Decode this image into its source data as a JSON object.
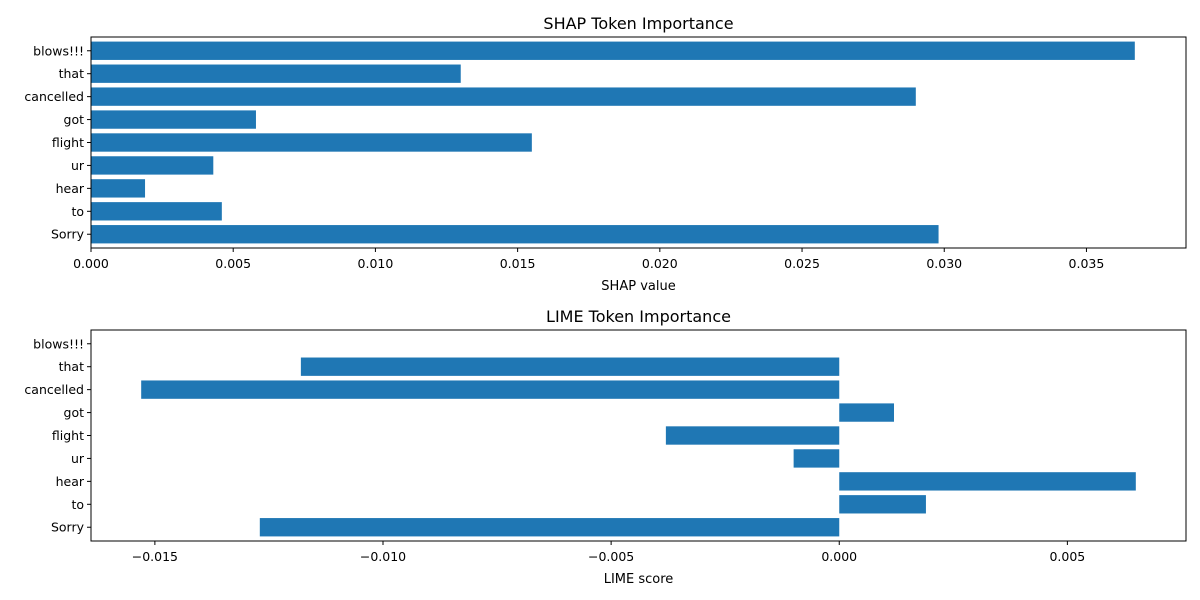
{
  "chart_data": [
    {
      "type": "bar",
      "orientation": "horizontal",
      "title": "SHAP Token Importance",
      "xlabel": "SHAP value",
      "ylabel": "",
      "categories": [
        "Sorry",
        "to",
        "hear",
        "ur",
        "flight",
        "got",
        "cancelled",
        "that",
        "blows!!!"
      ],
      "values": [
        0.0298,
        0.0046,
        0.0019,
        0.0043,
        0.0155,
        0.0058,
        0.029,
        0.013,
        0.0367
      ],
      "xlim": [
        0,
        0.0385
      ],
      "xticks": [
        0.0,
        0.005,
        0.01,
        0.015,
        0.02,
        0.025,
        0.03,
        0.035
      ],
      "xtick_labels": [
        "0.000",
        "0.005",
        "0.010",
        "0.015",
        "0.020",
        "0.025",
        "0.030",
        "0.035"
      ],
      "grid": false,
      "bar_color": "#1f77b4"
    },
    {
      "type": "bar",
      "orientation": "horizontal",
      "title": "LIME Token Importance",
      "xlabel": "LIME score",
      "ylabel": "",
      "categories": [
        "Sorry",
        "to",
        "hear",
        "ur",
        "flight",
        "got",
        "cancelled",
        "that",
        "blows!!!"
      ],
      "values": [
        -0.0127,
        0.0019,
        0.0065,
        -0.001,
        -0.0038,
        0.0012,
        -0.0153,
        -0.0118,
        0.0
      ],
      "xlim": [
        -0.0164,
        0.0076
      ],
      "xticks": [
        -0.015,
        -0.01,
        -0.005,
        0.0,
        0.005
      ],
      "xtick_labels": [
        "−0.015",
        "−0.010",
        "−0.005",
        "0.000",
        "0.005"
      ],
      "grid": false,
      "bar_color": "#1f77b4"
    }
  ]
}
